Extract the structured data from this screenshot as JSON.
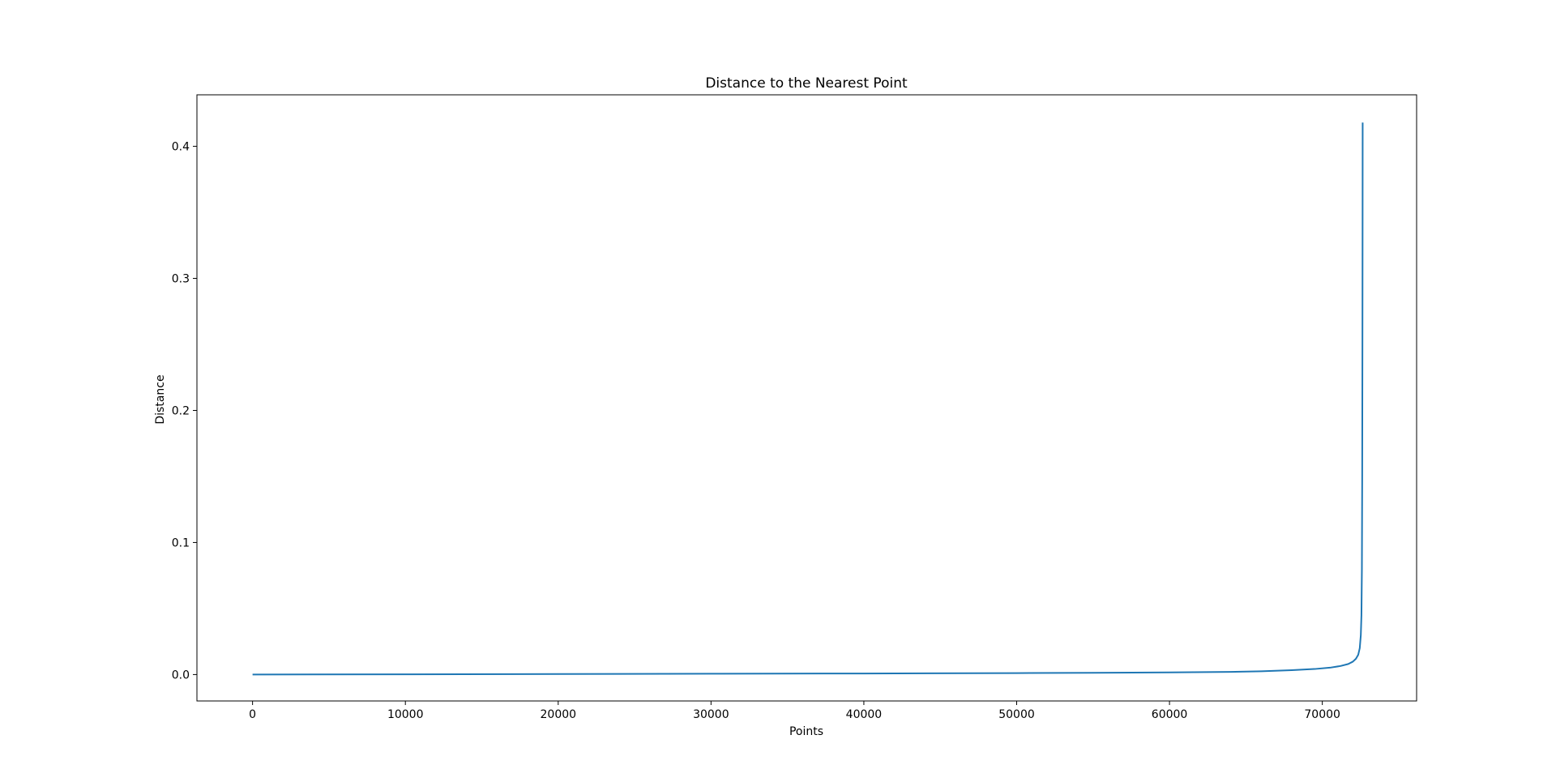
{
  "chart_data": {
    "type": "line",
    "title": "Distance to the Nearest Point",
    "xlabel": "Points",
    "ylabel": "Distance",
    "xlim": [
      -3640,
      76170
    ],
    "ylim": [
      -0.02,
      0.439
    ],
    "x_ticks": [
      0,
      10000,
      20000,
      30000,
      40000,
      50000,
      60000,
      70000
    ],
    "x_tick_labels": [
      "0",
      "10000",
      "20000",
      "30000",
      "40000",
      "50000",
      "60000",
      "70000"
    ],
    "y_ticks": [
      0.0,
      0.1,
      0.2,
      0.3,
      0.4
    ],
    "y_tick_labels": [
      "0.0",
      "0.1",
      "0.2",
      "0.3",
      "0.4"
    ],
    "grid": false,
    "series": [
      {
        "color": "#1f77b4",
        "x": [
          0,
          10000,
          20000,
          30000,
          40000,
          50000,
          55000,
          60000,
          64000,
          66000,
          68000,
          69500,
          70500,
          71200,
          71700,
          72000,
          72200,
          72350,
          72450,
          72520,
          72560,
          72590,
          72610,
          72625,
          72635,
          72640
        ],
        "y": [
          0.0,
          0.0002,
          0.0004,
          0.0006,
          0.0008,
          0.0011,
          0.0013,
          0.0016,
          0.002,
          0.0025,
          0.0033,
          0.0042,
          0.0052,
          0.0065,
          0.008,
          0.0098,
          0.012,
          0.015,
          0.02,
          0.03,
          0.045,
          0.08,
          0.15,
          0.25,
          0.35,
          0.418
        ]
      }
    ]
  }
}
